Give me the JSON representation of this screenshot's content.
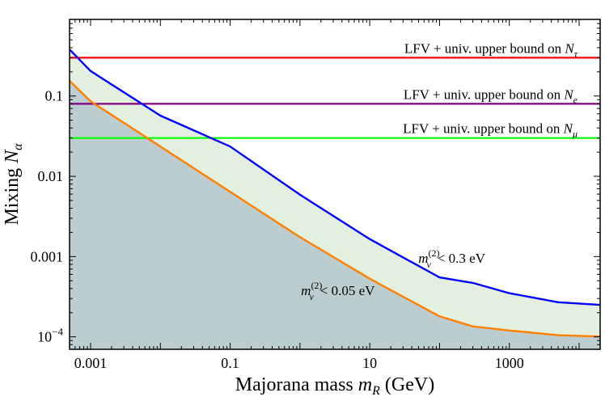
{
  "chart_data": {
    "type": "line",
    "xlabel": "Majorana mass m_R (GeV)",
    "ylabel": "Mixing N_α",
    "xscale": "log",
    "yscale": "log",
    "xlim": [
      0.0005,
      20000
    ],
    "ylim": [
      7e-05,
      0.9
    ],
    "x_ticks": [
      {
        "value": 0.001,
        "label": "0.001"
      },
      {
        "value": 0.1,
        "label": "0.1"
      },
      {
        "value": 10,
        "label": "10"
      },
      {
        "value": 1000,
        "label": "1000"
      }
    ],
    "y_ticks": [
      {
        "value": 0.1,
        "label": "0.1",
        "sup": ""
      },
      {
        "value": 0.01,
        "label": "0.01",
        "sup": ""
      },
      {
        "value": 0.001,
        "label": "0.001",
        "sup": ""
      },
      {
        "value": 0.0001,
        "label": "10",
        "sup": "−4"
      }
    ],
    "series": [
      {
        "name": "m_ν^(2) < 0.3 eV",
        "color": "#0000ff",
        "fill": "#e4f0df",
        "points": [
          [
            0.0005,
            0.38
          ],
          [
            0.001,
            0.205
          ],
          [
            0.01,
            0.057
          ],
          [
            0.1,
            0.0235
          ],
          [
            1,
            0.0059
          ],
          [
            10,
            0.00165
          ],
          [
            100,
            0.00055
          ],
          [
            300,
            0.00047
          ],
          [
            1000,
            0.00035
          ],
          [
            5000,
            0.00027
          ],
          [
            20000,
            0.00025
          ]
        ]
      },
      {
        "name": "m_ν^(2) < 0.05 eV",
        "color": "#ff8000",
        "fill": "#bccdcf",
        "points": [
          [
            0.0005,
            0.155
          ],
          [
            0.001,
            0.086
          ],
          [
            0.01,
            0.0235
          ],
          [
            0.1,
            0.0064
          ],
          [
            1,
            0.00175
          ],
          [
            10,
            0.00053
          ],
          [
            100,
            0.00018
          ],
          [
            300,
            0.000135
          ],
          [
            1000,
            0.00012
          ],
          [
            5000,
            0.000105
          ],
          [
            20000,
            0.000101
          ]
        ]
      }
    ],
    "bounds": [
      {
        "label": "LFV + univ. upper bound on N",
        "subscript": "τ",
        "value": 0.3,
        "color": "#ff0000"
      },
      {
        "label": "LFV + univ. upper bound on N",
        "subscript": "e",
        "value": 0.08,
        "color": "#800080"
      },
      {
        "label": "LFV + univ. upper bound on N",
        "subscript": "μ",
        "value": 0.03,
        "color": "#00ff00"
      }
    ],
    "annotations": [
      {
        "mass_symbol": "m",
        "mass_sub": "ν",
        "mass_sup": "(2)",
        "text": "< 0.3 eV",
        "x": 150,
        "y": 0.00084
      },
      {
        "mass_symbol": "m",
        "mass_sub": "ν",
        "mass_sup": "(2)",
        "text": "< 0.05 eV",
        "x": 3.5,
        "y": 0.00033
      }
    ],
    "grid": false,
    "legend": "none"
  }
}
